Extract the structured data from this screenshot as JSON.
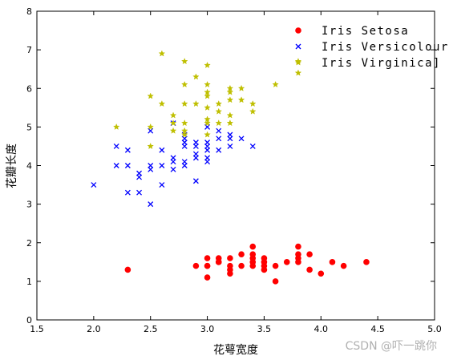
{
  "chart_data": {
    "type": "scatter",
    "xlabel": "花萼宽度",
    "ylabel": "花瓣长度",
    "xlim": [
      1.5,
      5.0
    ],
    "ylim": [
      0,
      8
    ],
    "xticks": [
      "1.5",
      "2.0",
      "2.5",
      "3.0",
      "3.5",
      "4.0",
      "4.5",
      "5.0"
    ],
    "yticks": [
      "0",
      "1",
      "2",
      "3",
      "4",
      "5",
      "6",
      "7",
      "8"
    ],
    "legend_position": "top-right",
    "grid": false,
    "series": [
      {
        "name": "Iris Setosa",
        "marker": "circle",
        "color": "#ff0000",
        "points": [
          [
            2.3,
            1.3
          ],
          [
            2.9,
            1.4
          ],
          [
            3.0,
            1.1
          ],
          [
            3.0,
            1.4
          ],
          [
            3.0,
            1.6
          ],
          [
            3.0,
            1.4
          ],
          [
            3.1,
            1.5
          ],
          [
            3.1,
            1.6
          ],
          [
            3.1,
            1.5
          ],
          [
            3.2,
            1.2
          ],
          [
            3.2,
            1.3
          ],
          [
            3.2,
            1.4
          ],
          [
            3.2,
            1.6
          ],
          [
            3.3,
            1.4
          ],
          [
            3.3,
            1.7
          ],
          [
            3.4,
            1.4
          ],
          [
            3.4,
            1.5
          ],
          [
            3.4,
            1.6
          ],
          [
            3.4,
            1.7
          ],
          [
            3.4,
            1.9
          ],
          [
            3.5,
            1.3
          ],
          [
            3.5,
            1.4
          ],
          [
            3.5,
            1.5
          ],
          [
            3.5,
            1.6
          ],
          [
            3.6,
            1.0
          ],
          [
            3.6,
            1.4
          ],
          [
            3.7,
            1.5
          ],
          [
            3.8,
            1.5
          ],
          [
            3.8,
            1.6
          ],
          [
            3.8,
            1.7
          ],
          [
            3.8,
            1.9
          ],
          [
            3.9,
            1.3
          ],
          [
            3.9,
            1.7
          ],
          [
            4.0,
            1.2
          ],
          [
            4.1,
            1.5
          ],
          [
            4.2,
            1.4
          ],
          [
            4.4,
            1.5
          ]
        ]
      },
      {
        "name": "Iris Versicolour",
        "marker": "x",
        "color": "#0000ff",
        "points": [
          [
            2.0,
            3.5
          ],
          [
            2.2,
            4.0
          ],
          [
            2.2,
            4.5
          ],
          [
            2.3,
            3.3
          ],
          [
            2.3,
            4.0
          ],
          [
            2.3,
            4.4
          ],
          [
            2.4,
            3.3
          ],
          [
            2.4,
            3.7
          ],
          [
            2.4,
            3.8
          ],
          [
            2.5,
            3.0
          ],
          [
            2.5,
            3.9
          ],
          [
            2.5,
            4.0
          ],
          [
            2.5,
            4.9
          ],
          [
            2.6,
            3.5
          ],
          [
            2.6,
            4.0
          ],
          [
            2.6,
            4.4
          ],
          [
            2.7,
            3.9
          ],
          [
            2.7,
            4.1
          ],
          [
            2.7,
            4.2
          ],
          [
            2.7,
            5.1
          ],
          [
            2.8,
            4.0
          ],
          [
            2.8,
            4.1
          ],
          [
            2.8,
            4.5
          ],
          [
            2.8,
            4.6
          ],
          [
            2.8,
            4.7
          ],
          [
            2.8,
            4.8
          ],
          [
            2.9,
            3.6
          ],
          [
            2.9,
            4.2
          ],
          [
            2.9,
            4.3
          ],
          [
            2.9,
            4.5
          ],
          [
            2.9,
            4.6
          ],
          [
            3.0,
            4.1
          ],
          [
            3.0,
            4.2
          ],
          [
            3.0,
            4.4
          ],
          [
            3.0,
            4.5
          ],
          [
            3.0,
            4.6
          ],
          [
            3.0,
            5.0
          ],
          [
            3.1,
            4.4
          ],
          [
            3.1,
            4.7
          ],
          [
            3.1,
            4.9
          ],
          [
            3.2,
            4.5
          ],
          [
            3.2,
            4.7
          ],
          [
            3.2,
            4.8
          ],
          [
            3.3,
            4.7
          ],
          [
            3.4,
            4.5
          ]
        ]
      },
      {
        "name": "Iris Virginica]",
        "marker": "star",
        "color": "#bfbf00",
        "points": [
          [
            2.2,
            5.0
          ],
          [
            2.5,
            4.5
          ],
          [
            2.5,
            5.0
          ],
          [
            2.5,
            5.8
          ],
          [
            2.6,
            5.6
          ],
          [
            2.6,
            6.9
          ],
          [
            2.7,
            4.9
          ],
          [
            2.7,
            5.1
          ],
          [
            2.7,
            5.3
          ],
          [
            2.8,
            4.8
          ],
          [
            2.8,
            4.9
          ],
          [
            2.8,
            5.1
          ],
          [
            2.8,
            5.6
          ],
          [
            2.8,
            6.1
          ],
          [
            2.8,
            6.7
          ],
          [
            2.9,
            5.6
          ],
          [
            2.9,
            6.3
          ],
          [
            3.0,
            4.8
          ],
          [
            3.0,
            5.1
          ],
          [
            3.0,
            5.2
          ],
          [
            3.0,
            5.5
          ],
          [
            3.0,
            5.8
          ],
          [
            3.0,
            5.9
          ],
          [
            3.0,
            6.1
          ],
          [
            3.0,
            6.6
          ],
          [
            3.1,
            5.1
          ],
          [
            3.1,
            5.4
          ],
          [
            3.1,
            5.6
          ],
          [
            3.2,
            5.1
          ],
          [
            3.2,
            5.3
          ],
          [
            3.2,
            5.7
          ],
          [
            3.2,
            5.9
          ],
          [
            3.2,
            6.0
          ],
          [
            3.3,
            5.7
          ],
          [
            3.3,
            6.0
          ],
          [
            3.4,
            5.4
          ],
          [
            3.4,
            5.6
          ],
          [
            3.6,
            6.1
          ],
          [
            3.8,
            6.4
          ],
          [
            3.8,
            6.7
          ]
        ]
      }
    ]
  },
  "watermark": "CSDN @吓一跳你"
}
